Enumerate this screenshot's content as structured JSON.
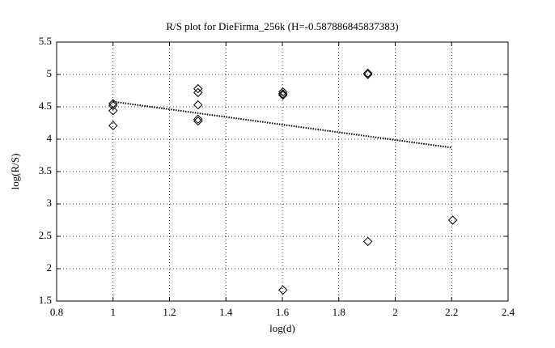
{
  "chart_data": {
    "type": "scatter",
    "title": "R/S plot for DieFirma_256k (H=-0.587886845837383)",
    "x_label": "log(d)",
    "y_label": "log(R/S)",
    "xlim": [
      0.8,
      2.4
    ],
    "xticks": [
      0.8,
      1,
      1.2,
      1.4,
      1.6,
      1.8,
      2,
      2.2,
      2.4
    ],
    "ylim": [
      1.5,
      5.5
    ],
    "yticks": [
      1.5,
      2,
      2.5,
      3,
      3.5,
      4,
      4.5,
      5,
      5.5
    ],
    "grid": true,
    "series": [
      {
        "type": "scatter",
        "marker": "diamond",
        "color": "#000000",
        "x": [
          1,
          1,
          1,
          1,
          1.301,
          1.301,
          1.301,
          1.301,
          1.301,
          1.602,
          1.602,
          1.602,
          1.602,
          1.903,
          1.903,
          1.903,
          2.204
        ],
        "values": [
          4.55,
          4.52,
          4.44,
          4.21,
          4.78,
          4.72,
          4.53,
          4.31,
          4.28,
          4.73,
          4.7,
          4.68,
          1.67,
          5.02,
          5.0,
          2.42,
          2.75
        ]
      },
      {
        "type": "line",
        "style": "dotted",
        "color": "#000000",
        "x": [
          1,
          2.2
        ],
        "values": [
          4.58,
          3.87
        ]
      }
    ]
  }
}
